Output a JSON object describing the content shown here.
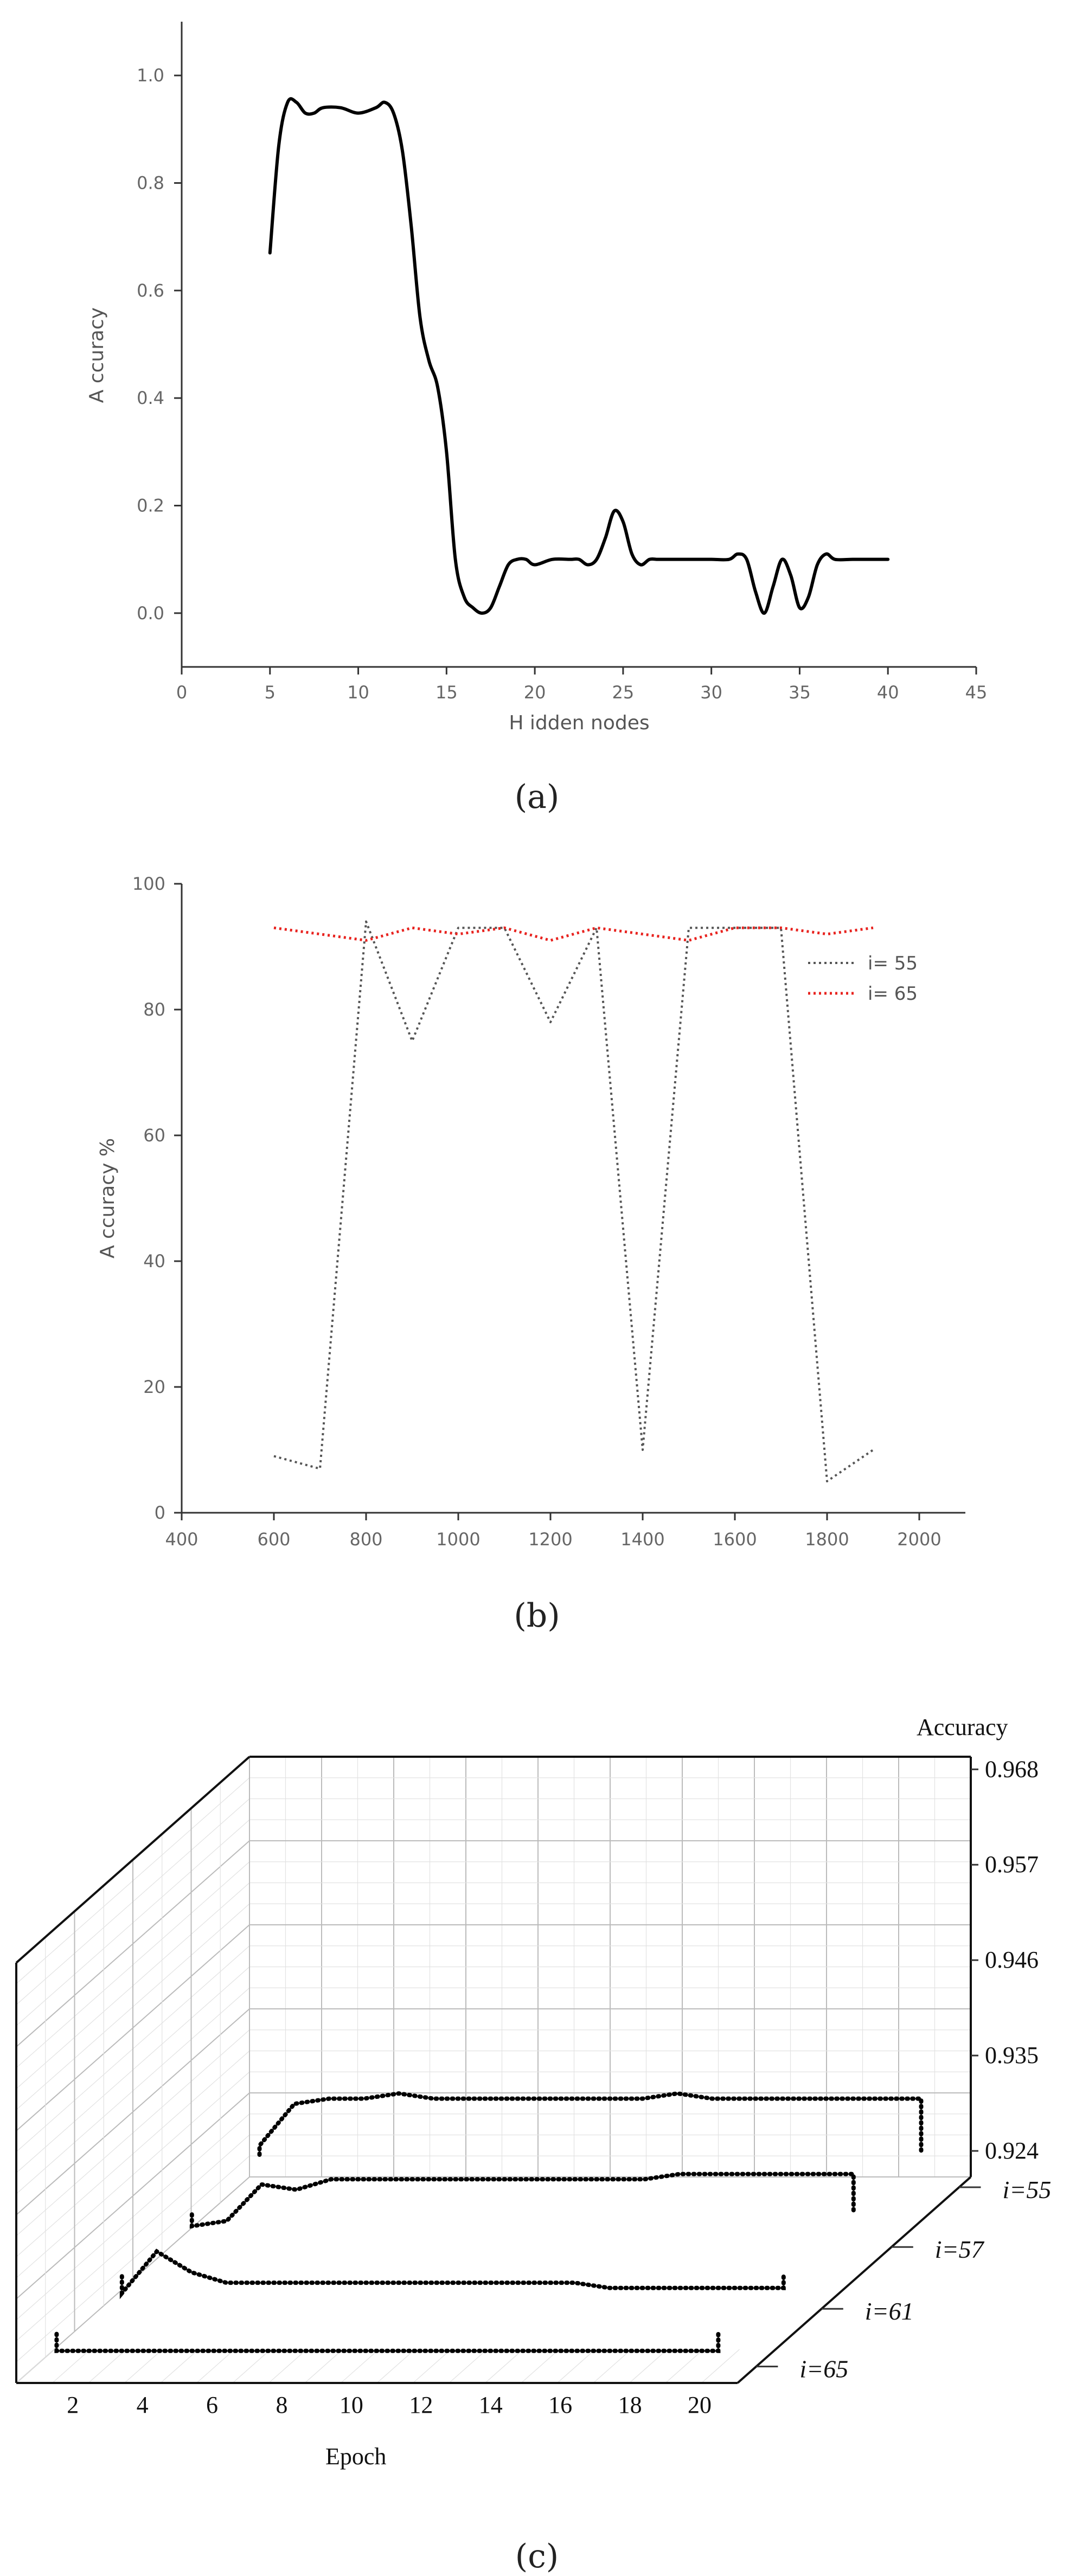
{
  "chart_data": [
    {
      "type": "line",
      "panel": "(a)",
      "xlabel": "H idden nodes",
      "ylabel": "A ccuracy",
      "xlim": [
        0,
        45
      ],
      "ylim": [
        -0.1,
        1.1
      ],
      "xticks": [
        0,
        5,
        10,
        15,
        20,
        25,
        30,
        35,
        40,
        45
      ],
      "yticks": [
        "0.0",
        "0.2",
        "0.4",
        "0.6",
        "0.8",
        "1.0"
      ],
      "series": [
        {
          "color": "#000000",
          "x": [
            5,
            5.5,
            6,
            6.5,
            7,
            7.5,
            8,
            9,
            10,
            11,
            11.5,
            12,
            12.5,
            13,
            13.5,
            14,
            14.5,
            15,
            15.5,
            16,
            16.5,
            17,
            17.5,
            18,
            18.5,
            19,
            19.5,
            20,
            21,
            22,
            22.5,
            23,
            23.5,
            24,
            24.5,
            25,
            25.5,
            26,
            26.5,
            27,
            28,
            29,
            30,
            31,
            31.5,
            32,
            32.5,
            33,
            33.5,
            34,
            34.5,
            35,
            35.5,
            36,
            36.5,
            37,
            38,
            39,
            40
          ],
          "y": [
            0.67,
            0.87,
            0.95,
            0.95,
            0.93,
            0.93,
            0.94,
            0.94,
            0.93,
            0.94,
            0.95,
            0.93,
            0.86,
            0.72,
            0.55,
            0.47,
            0.42,
            0.3,
            0.1,
            0.03,
            0.01,
            0.0,
            0.01,
            0.05,
            0.09,
            0.1,
            0.1,
            0.09,
            0.1,
            0.1,
            0.1,
            0.09,
            0.1,
            0.14,
            0.19,
            0.17,
            0.11,
            0.09,
            0.1,
            0.1,
            0.1,
            0.1,
            0.1,
            0.1,
            0.11,
            0.1,
            0.04,
            0.0,
            0.05,
            0.1,
            0.07,
            0.01,
            0.03,
            0.09,
            0.11,
            0.1,
            0.1,
            0.1,
            0.1
          ]
        }
      ]
    },
    {
      "type": "line",
      "panel": "(b)",
      "xlabel": "",
      "ylabel": "A ccuracy %",
      "xlim": [
        400,
        2100
      ],
      "ylim": [
        0,
        100
      ],
      "xticks": [
        400,
        600,
        800,
        1000,
        1200,
        1400,
        1600,
        1800,
        2000
      ],
      "yticks": [
        0,
        20,
        40,
        60,
        80,
        100
      ],
      "legend": "top-right",
      "series": [
        {
          "name": "i= 55",
          "color": "#555555",
          "x": [
            600,
            700,
            800,
            900,
            1000,
            1100,
            1200,
            1300,
            1400,
            1500,
            1600,
            1700,
            1800,
            1900
          ],
          "y": [
            9,
            7,
            94,
            75,
            93,
            93,
            78,
            93,
            10,
            93,
            93,
            93,
            5,
            10
          ]
        },
        {
          "name": "i= 65",
          "color": "#e8231f",
          "x": [
            600,
            700,
            800,
            900,
            1000,
            1100,
            1200,
            1300,
            1400,
            1500,
            1600,
            1700,
            1800,
            1900
          ],
          "y": [
            93,
            92,
            91,
            93,
            92,
            93,
            91,
            93,
            92,
            91,
            93,
            93,
            92,
            93
          ]
        }
      ]
    },
    {
      "type": "line",
      "panel": "(c)",
      "xlabel": "Epoch",
      "zlabel": "Accuracy",
      "xticks": [
        2,
        4,
        6,
        8,
        10,
        12,
        14,
        16,
        18,
        20
      ],
      "zticks": [
        "0.924",
        "0.935",
        "0.946",
        "0.957",
        "0.968"
      ],
      "depth_labels": [
        "i=55",
        "i=57",
        "i=61",
        "i=65"
      ],
      "series": [
        {
          "name": "i=55",
          "x": [
            1,
            2,
            3,
            4,
            5,
            6,
            7,
            8,
            9,
            10,
            11,
            12,
            13,
            14,
            15,
            16,
            17,
            18,
            19,
            20
          ],
          "y": [
            0.926,
            0.934,
            0.935,
            0.935,
            0.936,
            0.935,
            0.935,
            0.935,
            0.935,
            0.935,
            0.935,
            0.935,
            0.936,
            0.935,
            0.935,
            0.935,
            0.935,
            0.935,
            0.935,
            0.935
          ]
        },
        {
          "name": "i=57",
          "x": [
            1,
            2,
            3,
            4,
            5,
            6,
            7,
            8,
            9,
            10,
            11,
            12,
            13,
            14,
            15,
            16,
            17,
            18,
            19,
            20
          ],
          "y": [
            0.922,
            0.923,
            0.93,
            0.929,
            0.931,
            0.931,
            0.931,
            0.931,
            0.931,
            0.931,
            0.931,
            0.931,
            0.931,
            0.931,
            0.932,
            0.932,
            0.932,
            0.932,
            0.932,
            0.932
          ]
        },
        {
          "name": "i=61",
          "x": [
            1,
            2,
            3,
            4,
            5,
            6,
            7,
            8,
            9,
            10,
            11,
            12,
            13,
            14,
            15,
            16,
            17,
            18,
            19,
            20
          ],
          "y": [
            0.921,
            0.929,
            0.925,
            0.923,
            0.923,
            0.923,
            0.923,
            0.923,
            0.923,
            0.923,
            0.923,
            0.923,
            0.923,
            0.923,
            0.922,
            0.922,
            0.922,
            0.922,
            0.922,
            0.922
          ]
        },
        {
          "name": "i=65",
          "x": [
            1,
            2,
            3,
            4,
            5,
            6,
            7,
            8,
            9,
            10,
            11,
            12,
            13,
            14,
            15,
            16,
            17,
            18,
            19,
            20
          ],
          "y": [
            0.921,
            0.921,
            0.921,
            0.921,
            0.921,
            0.921,
            0.921,
            0.921,
            0.921,
            0.921,
            0.921,
            0.921,
            0.921,
            0.921,
            0.921,
            0.921,
            0.921,
            0.921,
            0.921,
            0.921
          ]
        }
      ]
    }
  ]
}
